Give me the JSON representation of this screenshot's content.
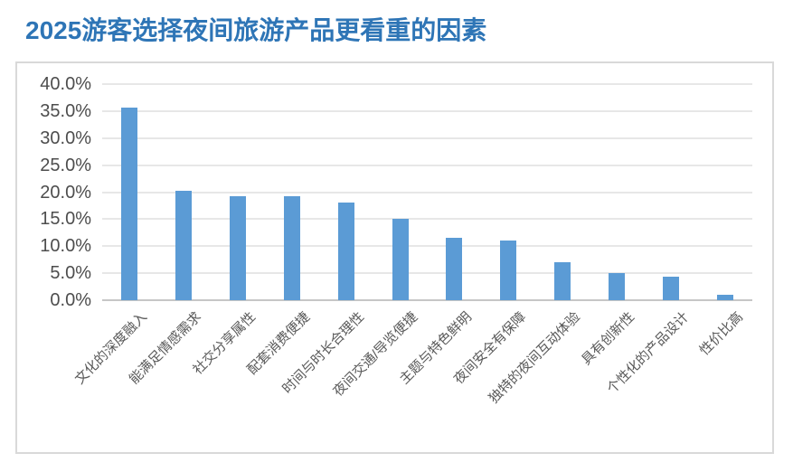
{
  "page": {
    "title": "2025游客选择夜间旅游产品更看重的因素"
  },
  "colors": {
    "title": "#2E75B6",
    "bar": "#5B9BD5",
    "axis_text": "#4d4d4d",
    "category_text": "#595959",
    "gridline": "#E7E7E7",
    "axis_line": "#C6C6C6",
    "box_border": "#D9D9D9",
    "background": "#FFFFFF"
  },
  "chart_data": {
    "type": "bar",
    "title": "2025游客选择夜间旅游产品更看重的因素",
    "categories": [
      "文化的深度融入",
      "能满足情感需求",
      "社交分享属性",
      "配套消费便捷",
      "时间与时长合理性",
      "夜间交通/导览便捷",
      "主题与特色鲜明",
      "夜间安全有保障",
      "独特的夜间互动体验",
      "具有创新性",
      "个性化的产品设计",
      "性价比高"
    ],
    "values": [
      35.6,
      20.3,
      19.2,
      19.2,
      18.0,
      15.0,
      11.5,
      11.0,
      7.0,
      5.1,
      4.4,
      1.0
    ],
    "unit": "%",
    "xlabel": "",
    "ylabel": "",
    "ylim": [
      0,
      40
    ],
    "ytick_step": 5,
    "ytick_decimals": 1,
    "grid": true,
    "legend_position": "none",
    "bar_orientation": "vertical",
    "category_label_rotation_deg": 45
  }
}
